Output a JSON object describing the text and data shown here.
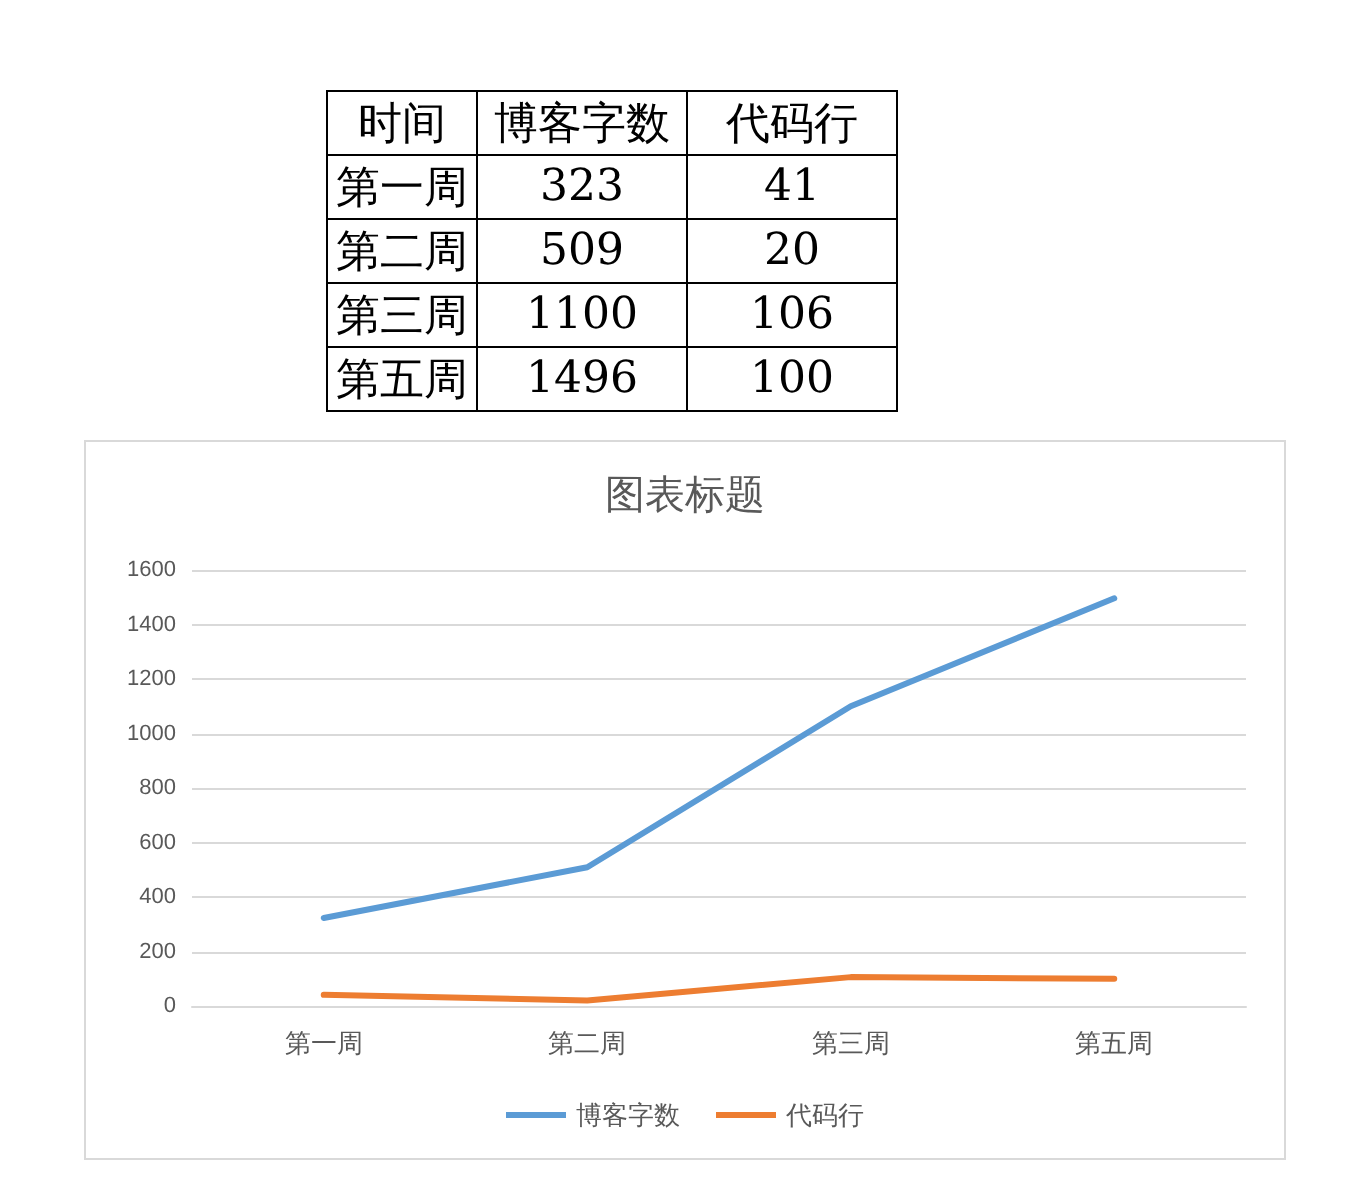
{
  "chart_data": {
    "type": "line",
    "title": "图表标题",
    "annotations": [
      "时间",
      "323",
      "41",
      "509",
      "20",
      "1100",
      "106",
      "1496",
      "100"
    ],
    "categories": [
      "第一周",
      "第二周",
      "第三周",
      "第五周"
    ],
    "series": [
      {
        "name": "博客字数",
        "color": "#5b9bd5",
        "values": [
          323,
          509,
          1100,
          1496
        ]
      },
      {
        "name": "代码行",
        "color": "#ed7d31",
        "values": [
          41,
          20,
          106,
          100
        ]
      }
    ],
    "ylim": [
      0,
      1600
    ],
    "yticks": [
      0,
      200,
      400,
      600,
      800,
      1000,
      1200,
      1400,
      1600
    ],
    "grid": "y",
    "legend": "bottom",
    "marker": "none",
    "line_style": "solid"
  }
}
